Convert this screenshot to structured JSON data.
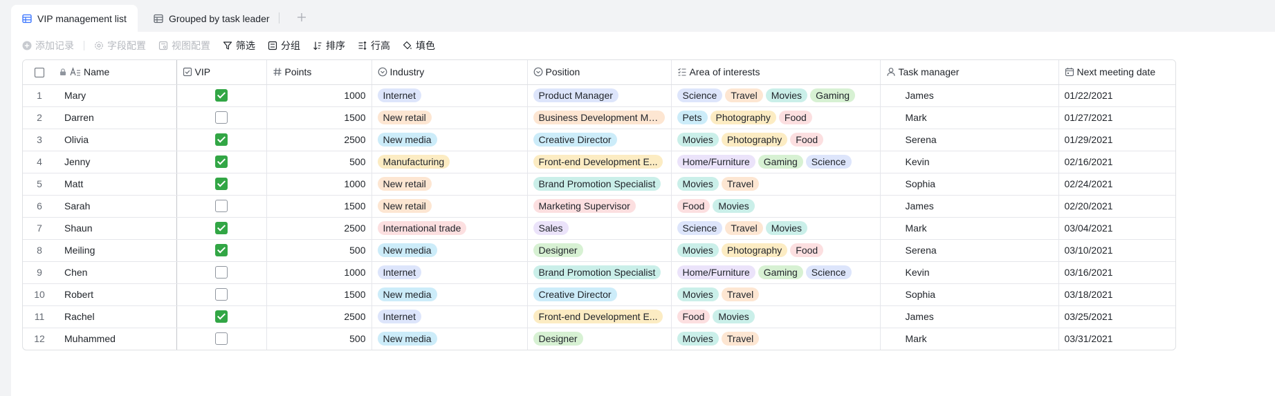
{
  "tabs": [
    {
      "label": "VIP management list",
      "icon": "table-icon",
      "active": true
    },
    {
      "label": "Grouped by task leader",
      "icon": "table-icon",
      "active": false
    }
  ],
  "toolbar": {
    "add_record": "添加记录",
    "field_config": "字段配置",
    "view_config": "视图配置",
    "filter": "筛选",
    "group": "分组",
    "sort": "排序",
    "row_height": "行高",
    "fill_color": "填色"
  },
  "columns": {
    "name": "Name",
    "vip": "VIP",
    "points": "Points",
    "industry": "Industry",
    "position": "Position",
    "interests": "Area of interests",
    "manager": "Task manager",
    "meeting": "Next meeting date"
  },
  "tag_colors": {
    "Internet": "#dde5fb",
    "New retail": "#fde6d2",
    "New media": "#ccecf9",
    "Manufacturing": "#fcecc3",
    "International trade": "#fcdfe0",
    "Product Manager": "#dde5fb",
    "Business Development Ma...": "#fde6d2",
    "Creative Director": "#ccecf9",
    "Front-end Development E...": "#fcecc3",
    "Brand Promotion Specialist": "#caefe9",
    "Marketing Supervisor": "#fcdfe0",
    "Sales": "#ebe3fa",
    "Designer": "#d7f1d3",
    "Science": "#dde5fb",
    "Travel": "#fde6d2",
    "Movies": "#caefe9",
    "Gaming": "#d7f1d3",
    "Pets": "#ccecf9",
    "Photography": "#fcecc3",
    "Food": "#fcdfe0",
    "Home/Furniture": "#ebe3fa"
  },
  "rows": [
    {
      "idx": "1",
      "name": "Mary",
      "vip": true,
      "points": "1000",
      "industry": "Internet",
      "position": "Product Manager",
      "interests": [
        "Science",
        "Travel",
        "Movies",
        "Gaming"
      ],
      "manager": "James",
      "meeting": "01/22/2021"
    },
    {
      "idx": "2",
      "name": "Darren",
      "vip": false,
      "points": "1500",
      "industry": "New retail",
      "position": "Business Development Ma...",
      "interests": [
        "Pets",
        "Photography",
        "Food"
      ],
      "manager": "Mark",
      "meeting": "01/27/2021"
    },
    {
      "idx": "3",
      "name": "Olivia",
      "vip": true,
      "points": "2500",
      "industry": "New media",
      "position": "Creative Director",
      "interests": [
        "Movies",
        "Photography",
        "Food"
      ],
      "manager": "Serena",
      "meeting": "01/29/2021"
    },
    {
      "idx": "4",
      "name": "Jenny",
      "vip": true,
      "points": "500",
      "industry": "Manufacturing",
      "position": "Front-end Development E...",
      "interests": [
        "Home/Furniture",
        "Gaming",
        "Science"
      ],
      "manager": "Kevin",
      "meeting": "02/16/2021"
    },
    {
      "idx": "5",
      "name": "Matt",
      "vip": true,
      "points": "1000",
      "industry": "New retail",
      "position": "Brand Promotion Specialist",
      "interests": [
        "Movies",
        "Travel"
      ],
      "manager": "Sophia",
      "meeting": "02/24/2021"
    },
    {
      "idx": "6",
      "name": "Sarah",
      "vip": false,
      "points": "1500",
      "industry": "New retail",
      "position": "Marketing Supervisor",
      "interests": [
        "Food",
        "Movies"
      ],
      "manager": "James",
      "meeting": "02/20/2021"
    },
    {
      "idx": "7",
      "name": "Shaun",
      "vip": true,
      "points": "2500",
      "industry": "International trade",
      "position": "Sales",
      "interests": [
        "Science",
        "Travel",
        "Movies"
      ],
      "manager": "Mark",
      "meeting": "03/04/2021"
    },
    {
      "idx": "8",
      "name": "Meiling",
      "vip": true,
      "points": "500",
      "industry": "New media",
      "position": "Designer",
      "interests": [
        "Movies",
        "Photography",
        "Food"
      ],
      "manager": "Serena",
      "meeting": "03/10/2021"
    },
    {
      "idx": "9",
      "name": "Chen",
      "vip": false,
      "points": "1000",
      "industry": "Internet",
      "position": "Brand Promotion Specialist",
      "interests": [
        "Home/Furniture",
        "Gaming",
        "Science"
      ],
      "manager": "Kevin",
      "meeting": "03/16/2021"
    },
    {
      "idx": "10",
      "name": "Robert",
      "vip": false,
      "points": "1500",
      "industry": "New media",
      "position": "Creative Director",
      "interests": [
        "Movies",
        "Travel"
      ],
      "manager": "Sophia",
      "meeting": "03/18/2021"
    },
    {
      "idx": "11",
      "name": "Rachel",
      "vip": true,
      "points": "2500",
      "industry": "Internet",
      "position": "Front-end Development E...",
      "interests": [
        "Food",
        "Movies"
      ],
      "manager": "James",
      "meeting": "03/25/2021"
    },
    {
      "idx": "12",
      "name": "Muhammed",
      "vip": false,
      "points": "500",
      "industry": "New media",
      "position": "Designer",
      "interests": [
        "Movies",
        "Travel"
      ],
      "manager": "Mark",
      "meeting": "03/31/2021"
    }
  ]
}
